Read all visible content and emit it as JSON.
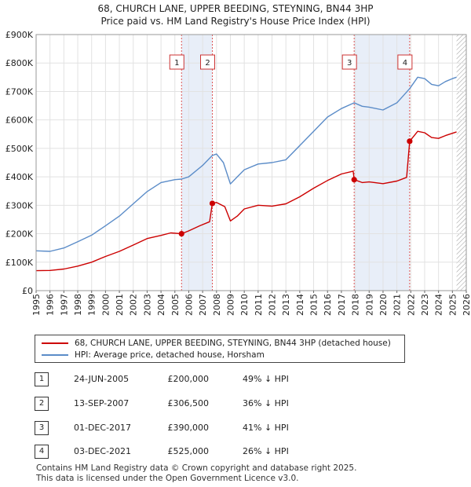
{
  "chart_data": {
    "type": "line",
    "title": "68, CHURCH LANE, UPPER BEEDING, STEYNING, BN44 3HP",
    "subtitle": "Price paid vs. HM Land Registry's House Price Index (HPI)",
    "xlim": [
      1995,
      2026
    ],
    "ylim": [
      0,
      900000
    ],
    "x_ticks": [
      "1995",
      "1996",
      "1997",
      "1998",
      "1999",
      "2000",
      "2001",
      "2002",
      "2003",
      "2004",
      "2005",
      "2006",
      "2007",
      "2008",
      "2009",
      "2010",
      "2011",
      "2012",
      "2013",
      "2014",
      "2015",
      "2016",
      "2017",
      "2018",
      "2019",
      "2020",
      "2021",
      "2022",
      "2023",
      "2024",
      "2025",
      "2026"
    ],
    "y_ticks": [
      {
        "value": 0,
        "label": "£0"
      },
      {
        "value": 100000,
        "label": "£100K"
      },
      {
        "value": 200000,
        "label": "£200K"
      },
      {
        "value": 300000,
        "label": "£300K"
      },
      {
        "value": 400000,
        "label": "£400K"
      },
      {
        "value": 500000,
        "label": "£500K"
      },
      {
        "value": 600000,
        "label": "£600K"
      },
      {
        "value": 700000,
        "label": "£700K"
      },
      {
        "value": 800000,
        "label": "£800K"
      },
      {
        "value": 900000,
        "label": "£900K"
      }
    ],
    "shaded_regions": [
      [
        2005.48,
        2007.7
      ],
      [
        2017.92,
        2021.92
      ]
    ],
    "hatch_from": 2025.3,
    "series": [
      {
        "name": "68, CHURCH LANE, UPPER BEEDING, STEYNING, BN44 3HP (detached house)",
        "color": "#cc0000",
        "points": [
          [
            1995.0,
            70000
          ],
          [
            1996.0,
            71000
          ],
          [
            1997.0,
            76000
          ],
          [
            1998.0,
            86000
          ],
          [
            1999.0,
            100000
          ],
          [
            2000.0,
            120000
          ],
          [
            2001.0,
            138000
          ],
          [
            2002.0,
            160000
          ],
          [
            2003.0,
            183000
          ],
          [
            2004.0,
            194000
          ],
          [
            2004.7,
            203000
          ],
          [
            2005.48,
            200000
          ],
          [
            2006.0,
            210000
          ],
          [
            2006.8,
            228000
          ],
          [
            2007.5,
            242000
          ],
          [
            2007.7,
            306500
          ],
          [
            2008.0,
            310000
          ],
          [
            2008.6,
            295000
          ],
          [
            2009.0,
            245000
          ],
          [
            2009.5,
            262000
          ],
          [
            2010.0,
            287000
          ],
          [
            2011.0,
            300000
          ],
          [
            2012.0,
            297000
          ],
          [
            2013.0,
            305000
          ],
          [
            2014.0,
            330000
          ],
          [
            2015.0,
            360000
          ],
          [
            2016.0,
            387000
          ],
          [
            2017.0,
            410000
          ],
          [
            2017.85,
            420000
          ],
          [
            2017.92,
            390000
          ],
          [
            2018.5,
            380000
          ],
          [
            2019.0,
            382000
          ],
          [
            2020.0,
            376000
          ],
          [
            2021.0,
            385000
          ],
          [
            2021.7,
            398000
          ],
          [
            2021.92,
            525000
          ],
          [
            2022.5,
            560000
          ],
          [
            2023.0,
            555000
          ],
          [
            2023.5,
            538000
          ],
          [
            2024.0,
            535000
          ],
          [
            2024.5,
            545000
          ],
          [
            2025.0,
            553000
          ],
          [
            2025.3,
            558000
          ]
        ]
      },
      {
        "name": "HPI: Average price, detached house, Horsham",
        "color": "#5b8cc8",
        "points": [
          [
            1995.0,
            140000
          ],
          [
            1996.0,
            138000
          ],
          [
            1997.0,
            150000
          ],
          [
            1998.0,
            172000
          ],
          [
            1999.0,
            195000
          ],
          [
            2000.0,
            228000
          ],
          [
            2001.0,
            262000
          ],
          [
            2002.0,
            305000
          ],
          [
            2003.0,
            348000
          ],
          [
            2004.0,
            380000
          ],
          [
            2005.0,
            390000
          ],
          [
            2005.48,
            392000
          ],
          [
            2006.0,
            400000
          ],
          [
            2007.0,
            440000
          ],
          [
            2007.7,
            475000
          ],
          [
            2008.0,
            480000
          ],
          [
            2008.5,
            450000
          ],
          [
            2009.0,
            375000
          ],
          [
            2009.5,
            400000
          ],
          [
            2010.0,
            425000
          ],
          [
            2011.0,
            445000
          ],
          [
            2012.0,
            450000
          ],
          [
            2013.0,
            460000
          ],
          [
            2014.0,
            510000
          ],
          [
            2015.0,
            560000
          ],
          [
            2016.0,
            610000
          ],
          [
            2017.0,
            640000
          ],
          [
            2017.92,
            660000
          ],
          [
            2018.5,
            648000
          ],
          [
            2019.0,
            645000
          ],
          [
            2020.0,
            635000
          ],
          [
            2021.0,
            660000
          ],
          [
            2021.92,
            710000
          ],
          [
            2022.5,
            750000
          ],
          [
            2023.0,
            745000
          ],
          [
            2023.5,
            725000
          ],
          [
            2024.0,
            720000
          ],
          [
            2024.5,
            735000
          ],
          [
            2025.0,
            745000
          ],
          [
            2025.3,
            750000
          ]
        ]
      }
    ],
    "annotations": [
      {
        "label": "1",
        "x": 2005.48
      },
      {
        "label": "2",
        "x": 2007.7
      },
      {
        "label": "3",
        "x": 2017.92
      },
      {
        "label": "4",
        "x": 2021.92
      }
    ],
    "sale_points": [
      {
        "x": 2005.48,
        "y": 200000
      },
      {
        "x": 2007.7,
        "y": 306500
      },
      {
        "x": 2017.92,
        "y": 390000
      },
      {
        "x": 2021.92,
        "y": 525000
      }
    ]
  },
  "legend": {
    "property": "68, CHURCH LANE, UPPER BEEDING, STEYNING, BN44 3HP (detached house)",
    "hpi": "HPI: Average price, detached house, Horsham"
  },
  "transactions": [
    {
      "num": "1",
      "date": "24-JUN-2005",
      "price": "£200,000",
      "hpi": "49% ↓ HPI"
    },
    {
      "num": "2",
      "date": "13-SEP-2007",
      "price": "£306,500",
      "hpi": "36% ↓ HPI"
    },
    {
      "num": "3",
      "date": "01-DEC-2017",
      "price": "£390,000",
      "hpi": "41% ↓ HPI"
    },
    {
      "num": "4",
      "date": "03-DEC-2021",
      "price": "£525,000",
      "hpi": "26% ↓ HPI"
    }
  ],
  "footer": {
    "line1": "Contains HM Land Registry data © Crown copyright and database right 2025.",
    "line2": "This data is licensed under the Open Government Licence v3.0."
  }
}
